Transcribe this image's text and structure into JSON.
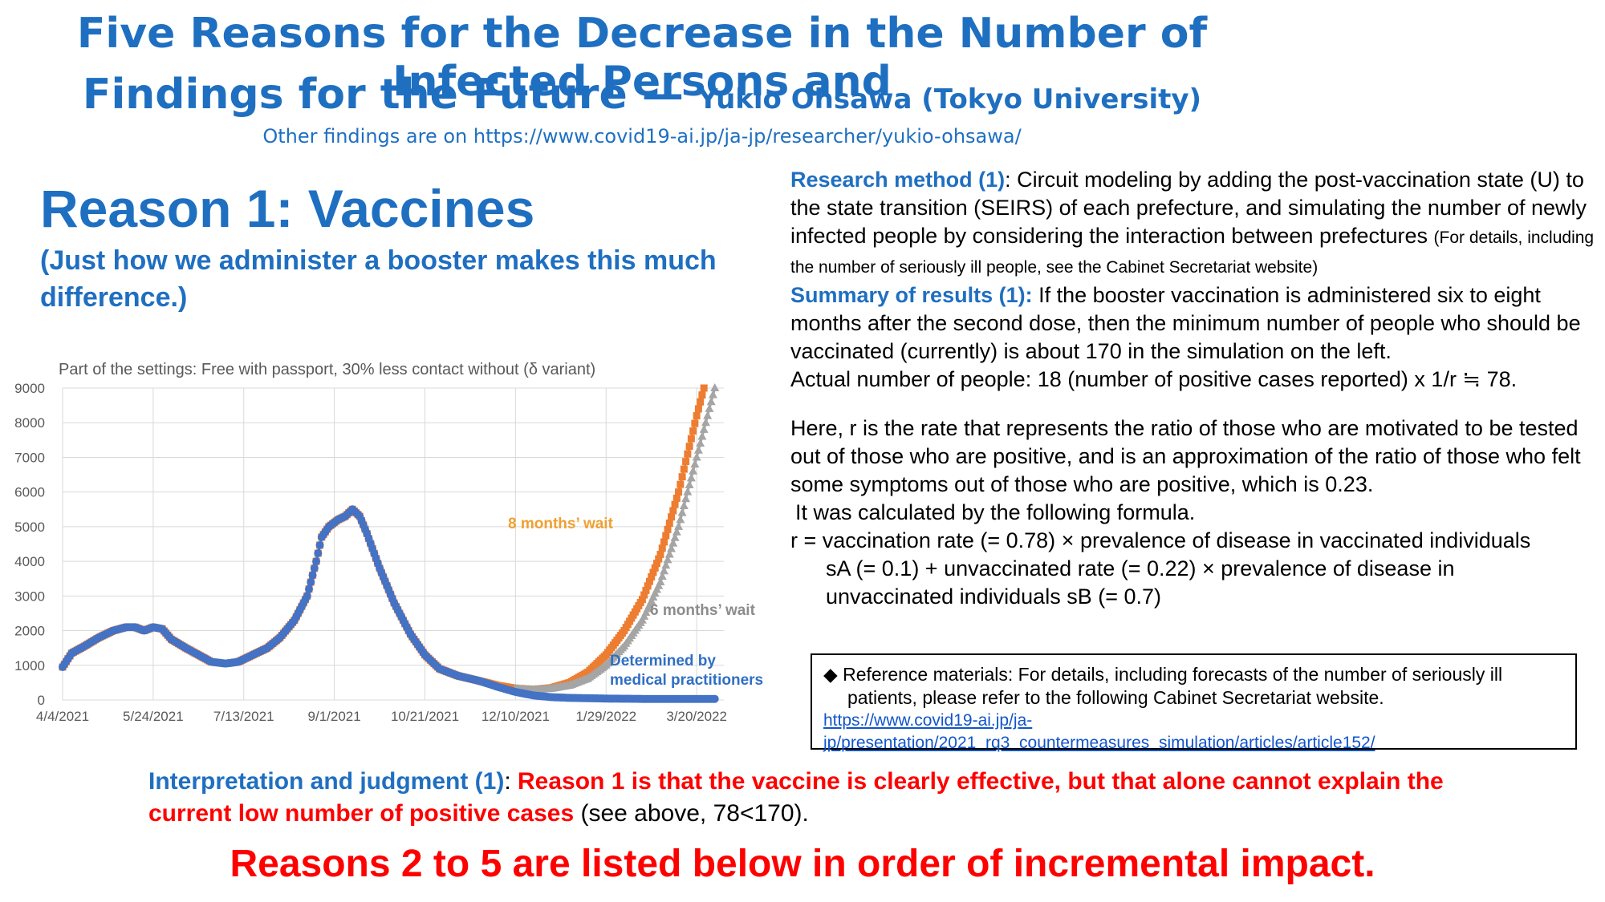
{
  "header": {
    "title_line1": "Five Reasons for the Decrease in the Number of Infected Persons and",
    "title_line2": "Findings for the Future",
    "title_dash": " — ",
    "author": "Yukio Ohsawa (Tokyo University)",
    "other_findings": "Other findings are on https://www.covid19-ai.jp/ja-jp/researcher/yukio-ohsawa/"
  },
  "reason": {
    "heading": "Reason 1: Vaccines",
    "subheading": "(Just how we administer a booster makes this much difference.)"
  },
  "research": {
    "label": "Research method (1)",
    "text": ": Circuit modeling by adding the post-vaccination state (U) to the state transition (SEIRS) of each prefecture, and simulating the number of newly infected people by considering the interaction between prefectures ",
    "small_note": "(For details, including the number of seriously ill people, see the Cabinet Secretariat website)"
  },
  "summary": {
    "label": "Summary of results (1):",
    "text": " If the booster vaccination is administered six to eight months after the second dose, then the minimum number of people who should be vaccinated (currently) is about 170 in the simulation on the left.",
    "actual": "Actual number of people: 18 (number of positive cases reported) x 1/r ≒ 78."
  },
  "explanation": {
    "r_def": "Here, r is the rate that represents the ratio of those who are motivated to be tested out of those who are positive, and is an approximation of the ratio of those who felt some symptoms out of those who are positive, which is 0.23.",
    "calc_line": "It was calculated by the following formula.",
    "formula_line1": "r = vaccination rate (= 0.78) × prevalence of disease in vaccinated individuals",
    "formula_line2": "sA (= 0.1) + unvaccinated rate (= 0.22) × prevalence of disease in",
    "formula_line3": "unvaccinated individuals sB (= 0.7)"
  },
  "reference": {
    "bullet": "◆",
    "text": "Reference materials: For details, including forecasts of the number of seriously ill patients, please refer to the following Cabinet Secretariat website.",
    "link_line1": "https://www.covid19-ai.jp/ja-",
    "link_line2": "jp/presentation/2021_rq3_countermeasures_simulation/articles/article152/"
  },
  "interpretation": {
    "label": "Interpretation and judgment (1)",
    "colon": ": ",
    "red_text": "Reason 1 is that the vaccine is clearly effective, but that alone cannot explain the current low number of positive cases",
    "tail": " (see above, 78<170)."
  },
  "bottom_line": "Reasons 2 to 5 are listed below in order of incremental impact.",
  "chart_data": {
    "type": "line",
    "title": "Part of the settings: Free with passport, 30% less contact without (δ variant)",
    "x_tick_labels": [
      "4/4/2021",
      "5/24/2021",
      "7/13/2021",
      "9/1/2021",
      "10/21/2021",
      "12/10/2021",
      "1/29/2022",
      "3/20/2022"
    ],
    "x_tick_days": [
      0,
      50,
      100,
      150,
      200,
      250,
      300,
      350
    ],
    "x_range_days": [
      0,
      365
    ],
    "ylim": [
      0,
      9000
    ],
    "y_ticks": [
      0,
      1000,
      2000,
      3000,
      4000,
      5000,
      6000,
      7000,
      8000,
      9000
    ],
    "grid": true,
    "annotations": [
      "8 months’ wait",
      "6 months’ wait",
      "Determined by",
      "medical practitioners"
    ],
    "series": [
      {
        "name": "8 months’ wait",
        "color": "#ed7d31",
        "marker": "square",
        "points": [
          [
            0,
            950
          ],
          [
            5,
            1350
          ],
          [
            12,
            1550
          ],
          [
            20,
            1800
          ],
          [
            28,
            2000
          ],
          [
            35,
            2100
          ],
          [
            40,
            2100
          ],
          [
            45,
            2000
          ],
          [
            50,
            2100
          ],
          [
            55,
            2050
          ],
          [
            60,
            1750
          ],
          [
            68,
            1500
          ],
          [
            75,
            1300
          ],
          [
            82,
            1100
          ],
          [
            90,
            1050
          ],
          [
            97,
            1100
          ],
          [
            105,
            1300
          ],
          [
            113,
            1500
          ],
          [
            120,
            1800
          ],
          [
            128,
            2300
          ],
          [
            135,
            3000
          ],
          [
            140,
            4000
          ],
          [
            143,
            4700
          ],
          [
            147,
            5000
          ],
          [
            152,
            5200
          ],
          [
            156,
            5300
          ],
          [
            160,
            5500
          ],
          [
            164,
            5300
          ],
          [
            168,
            4800
          ],
          [
            175,
            3800
          ],
          [
            183,
            2800
          ],
          [
            192,
            1900
          ],
          [
            200,
            1300
          ],
          [
            208,
            900
          ],
          [
            218,
            700
          ],
          [
            230,
            550
          ],
          [
            240,
            420
          ],
          [
            250,
            330
          ],
          [
            260,
            300
          ],
          [
            270,
            350
          ],
          [
            280,
            500
          ],
          [
            290,
            800
          ],
          [
            300,
            1300
          ],
          [
            310,
            2000
          ],
          [
            320,
            2900
          ],
          [
            330,
            4200
          ],
          [
            340,
            6000
          ],
          [
            350,
            8200
          ],
          [
            354,
            9000
          ]
        ]
      },
      {
        "name": "6 months’ wait",
        "color": "#a5a5a5",
        "marker": "triangle",
        "points": [
          [
            250,
            330
          ],
          [
            260,
            290
          ],
          [
            270,
            330
          ],
          [
            280,
            420
          ],
          [
            290,
            620
          ],
          [
            300,
            1000
          ],
          [
            310,
            1550
          ],
          [
            320,
            2300
          ],
          [
            330,
            3400
          ],
          [
            340,
            5000
          ],
          [
            350,
            7000
          ],
          [
            360,
            9000
          ]
        ]
      },
      {
        "name": "Determined by medical practitioners",
        "color": "#4472c4",
        "marker": "circle",
        "points": [
          [
            0,
            950
          ],
          [
            5,
            1350
          ],
          [
            12,
            1550
          ],
          [
            20,
            1800
          ],
          [
            28,
            2000
          ],
          [
            35,
            2100
          ],
          [
            40,
            2100
          ],
          [
            45,
            2000
          ],
          [
            50,
            2100
          ],
          [
            55,
            2050
          ],
          [
            60,
            1750
          ],
          [
            68,
            1500
          ],
          [
            75,
            1300
          ],
          [
            82,
            1100
          ],
          [
            90,
            1050
          ],
          [
            97,
            1100
          ],
          [
            105,
            1300
          ],
          [
            113,
            1500
          ],
          [
            120,
            1800
          ],
          [
            128,
            2300
          ],
          [
            135,
            3000
          ],
          [
            140,
            4000
          ],
          [
            143,
            4700
          ],
          [
            147,
            5000
          ],
          [
            152,
            5200
          ],
          [
            156,
            5300
          ],
          [
            160,
            5500
          ],
          [
            164,
            5300
          ],
          [
            168,
            4800
          ],
          [
            175,
            3800
          ],
          [
            183,
            2800
          ],
          [
            192,
            1900
          ],
          [
            200,
            1300
          ],
          [
            208,
            900
          ],
          [
            218,
            700
          ],
          [
            230,
            550
          ],
          [
            240,
            380
          ],
          [
            250,
            230
          ],
          [
            260,
            130
          ],
          [
            270,
            80
          ],
          [
            280,
            60
          ],
          [
            290,
            50
          ],
          [
            300,
            40
          ],
          [
            310,
            35
          ],
          [
            320,
            30
          ],
          [
            330,
            30
          ],
          [
            340,
            30
          ],
          [
            350,
            30
          ],
          [
            360,
            30
          ]
        ]
      }
    ]
  }
}
